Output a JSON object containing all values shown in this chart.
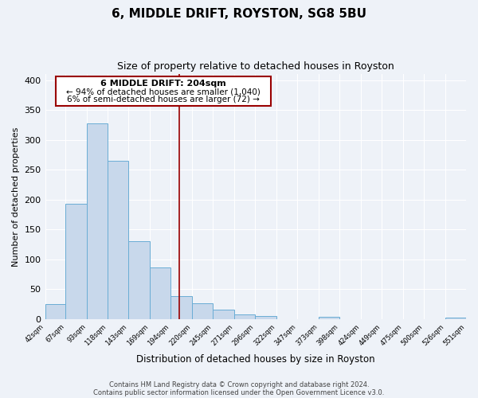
{
  "title": "6, MIDDLE DRIFT, ROYSTON, SG8 5BU",
  "subtitle": "Size of property relative to detached houses in Royston",
  "xlabel": "Distribution of detached houses by size in Royston",
  "ylabel": "Number of detached properties",
  "bar_edges": [
    42,
    67,
    93,
    118,
    143,
    169,
    194,
    220,
    245,
    271,
    296,
    322,
    347,
    373,
    398,
    424,
    449,
    475,
    500,
    526,
    551
  ],
  "bar_heights": [
    25,
    193,
    328,
    265,
    130,
    86,
    39,
    26,
    16,
    8,
    5,
    0,
    0,
    4,
    0,
    0,
    0,
    0,
    0,
    3
  ],
  "bar_color": "#c8d8eb",
  "bar_edge_color": "#6aadd5",
  "vline_x": 204,
  "vline_color": "#990000",
  "annotation_title": "6 MIDDLE DRIFT: 204sqm",
  "annotation_line1": "← 94% of detached houses are smaller (1,040)",
  "annotation_line2": "6% of semi-detached houses are larger (72) →",
  "annotation_box_facecolor": "#ffffff",
  "annotation_box_edgecolor": "#990000",
  "ylim": [
    0,
    410
  ],
  "yticks": [
    0,
    50,
    100,
    150,
    200,
    250,
    300,
    350,
    400
  ],
  "tick_labels": [
    "42sqm",
    "67sqm",
    "93sqm",
    "118sqm",
    "143sqm",
    "169sqm",
    "194sqm",
    "220sqm",
    "245sqm",
    "271sqm",
    "296sqm",
    "322sqm",
    "347sqm",
    "373sqm",
    "398sqm",
    "424sqm",
    "449sqm",
    "475sqm",
    "500sqm",
    "526sqm",
    "551sqm"
  ],
  "footer1": "Contains HM Land Registry data © Crown copyright and database right 2024.",
  "footer2": "Contains public sector information licensed under the Open Government Licence v3.0.",
  "background_color": "#eef2f8",
  "grid_color": "#ffffff",
  "figsize": [
    6.0,
    5.0
  ],
  "dpi": 100
}
